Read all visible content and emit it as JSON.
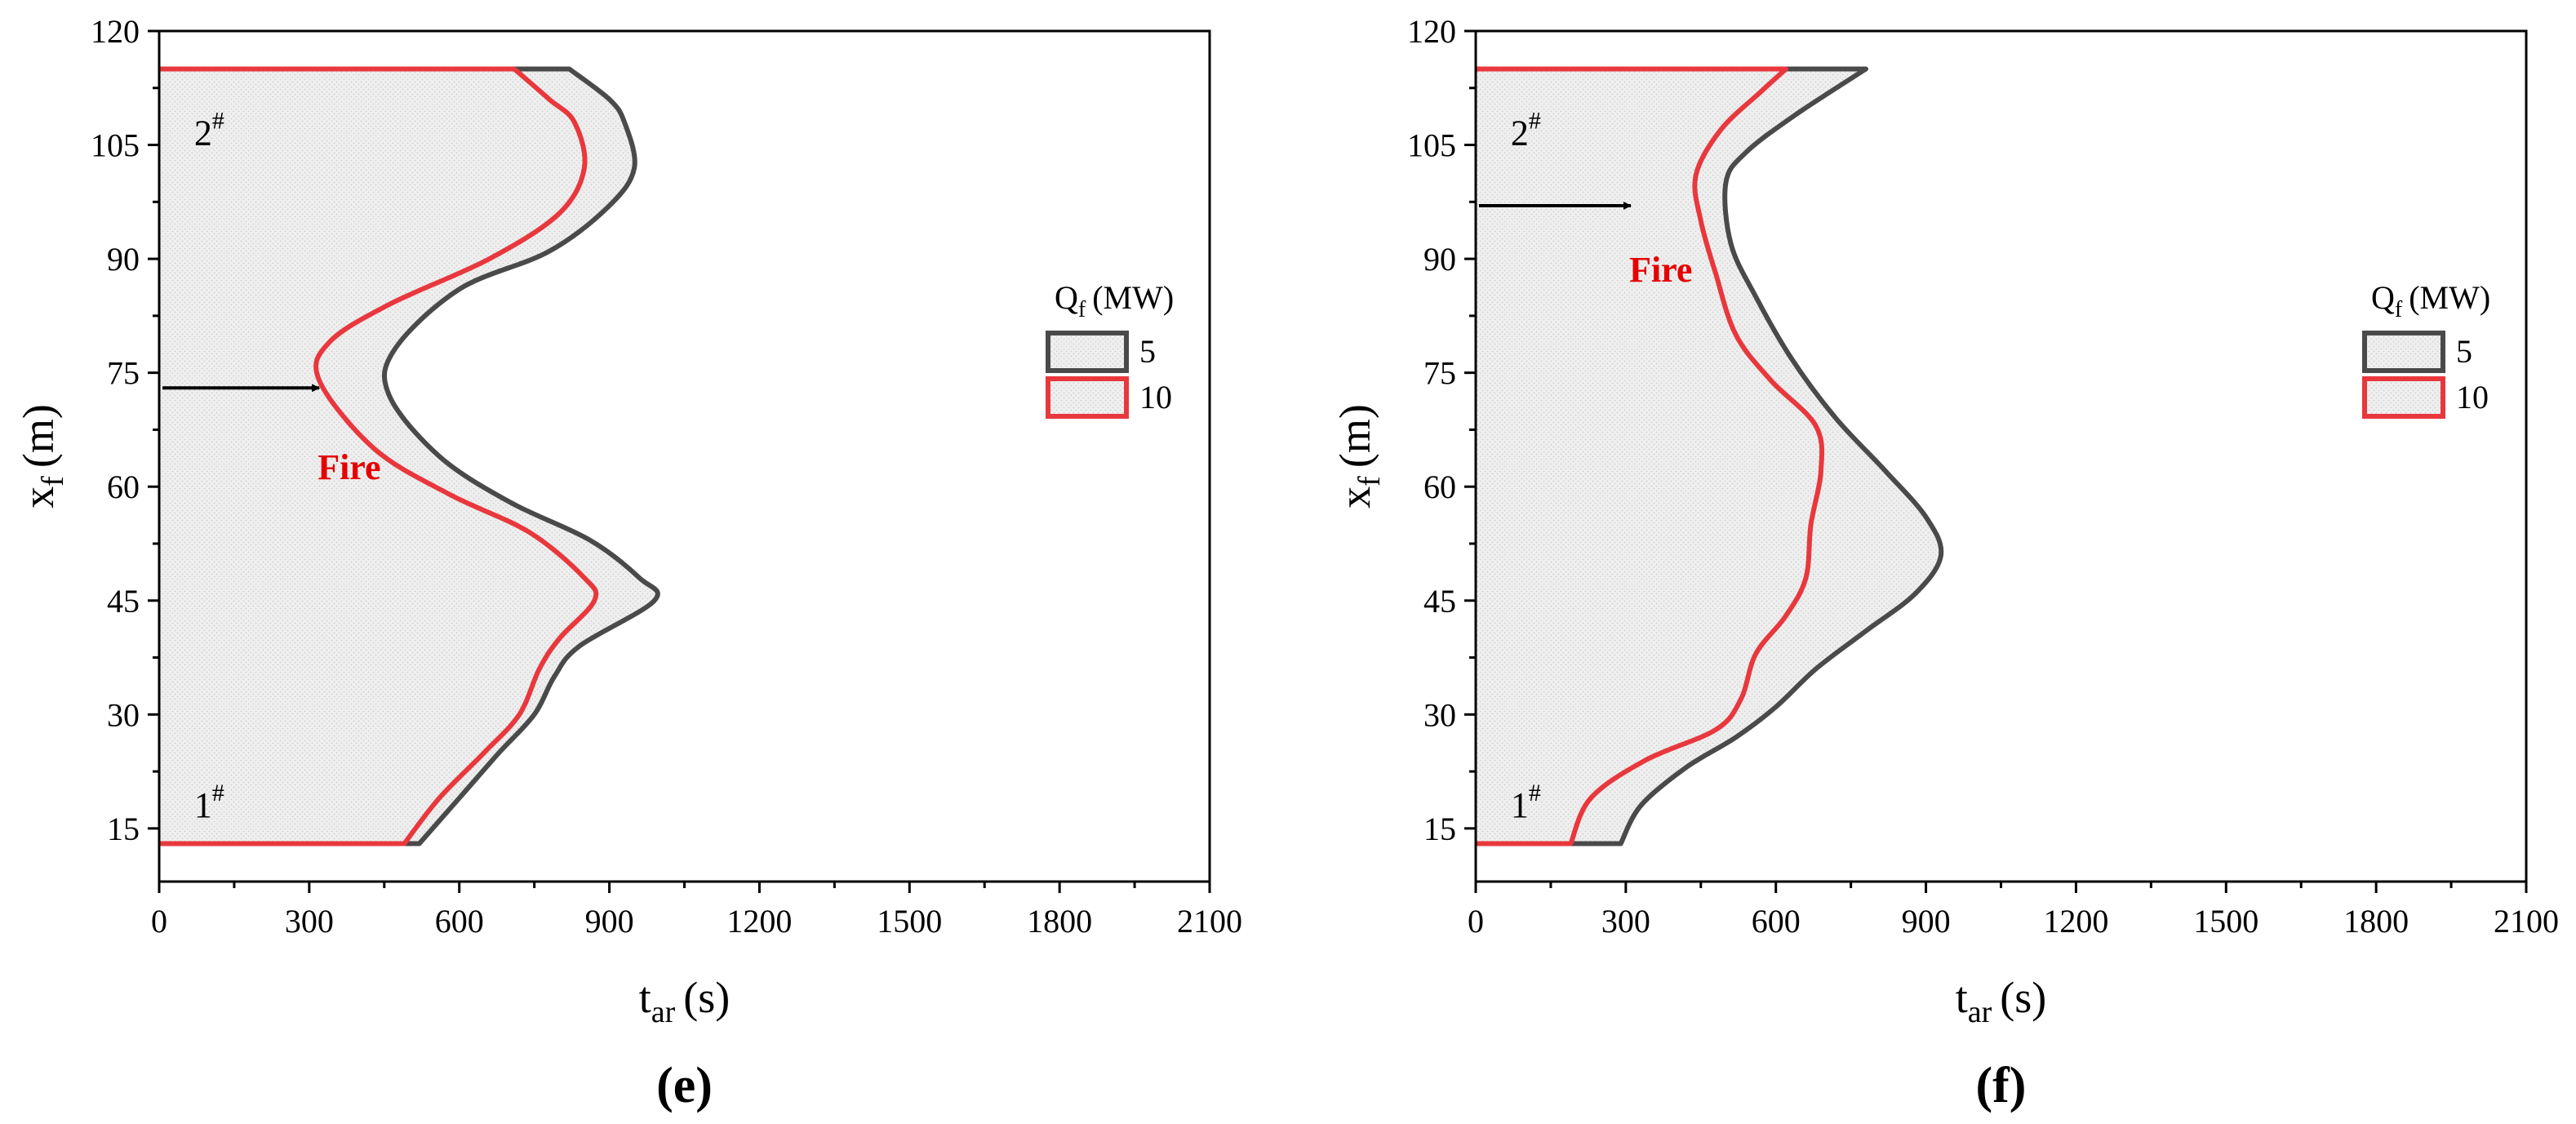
{
  "colors": {
    "series_5": "#4a4a4a",
    "series_10": "#e8383d",
    "fill": "#ededed",
    "annotation": "#e60000",
    "axis": "#000000"
  },
  "chart_data": [
    {
      "type": "line",
      "panel_label": "(e)",
      "xlabel_main": "t",
      "xlabel_sub": "ar",
      "xlabel_unit": "(s)",
      "ylabel_main": "x",
      "ylabel_sub": "f",
      "ylabel_unit": "(m)",
      "xlim": [
        0,
        2100
      ],
      "ylim": [
        8,
        120
      ],
      "x_ticks": [
        0,
        300,
        600,
        900,
        1200,
        1500,
        1800,
        2100
      ],
      "y_ticks": [
        15,
        30,
        45,
        60,
        75,
        90,
        105,
        120
      ],
      "legend_title_main": "Q",
      "legend_title_sub": "f",
      "legend_title_unit": "(MW)",
      "legend_placement": "right",
      "annotations": {
        "fire_text": "Fire",
        "fire_arrow": {
          "from": [
            0,
            73
          ],
          "to": [
            320,
            73
          ]
        },
        "fire_text_at": [
          380,
          61
        ],
        "label_top": "2",
        "label_top_sup": "#",
        "label_top_at": [
          70,
          105
        ],
        "label_bottom": "1",
        "label_bottom_sup": "#",
        "label_bottom_at": [
          70,
          16.5
        ]
      },
      "series": [
        {
          "name": "5",
          "color_key": "series_5",
          "points": [
            [
              0,
              13
            ],
            [
              520,
              13
            ],
            [
              600,
              19
            ],
            [
              680,
              25
            ],
            [
              750,
              30
            ],
            [
              790,
              35
            ],
            [
              840,
              39
            ],
            [
              990,
              45
            ],
            [
              960,
              48
            ],
            [
              860,
              53
            ],
            [
              700,
              58
            ],
            [
              560,
              64
            ],
            [
              460,
              72
            ],
            [
              470,
              78
            ],
            [
              600,
              86
            ],
            [
              780,
              91
            ],
            [
              900,
              97
            ],
            [
              950,
              102
            ],
            [
              930,
              108
            ],
            [
              900,
              111
            ],
            [
              820,
              115
            ],
            [
              0,
              115
            ]
          ]
        },
        {
          "name": "10",
          "color_key": "series_10",
          "points": [
            [
              0,
              13
            ],
            [
              490,
              13
            ],
            [
              560,
              19
            ],
            [
              650,
              25
            ],
            [
              720,
              30
            ],
            [
              760,
              36
            ],
            [
              800,
              40
            ],
            [
              870,
              45
            ],
            [
              850,
              48
            ],
            [
              740,
              54
            ],
            [
              580,
              59
            ],
            [
              430,
              65
            ],
            [
              320,
              74
            ],
            [
              340,
              79
            ],
            [
              460,
              84
            ],
            [
              660,
              90
            ],
            [
              800,
              96
            ],
            [
              850,
              102
            ],
            [
              830,
              108
            ],
            [
              780,
              111
            ],
            [
              710,
              115
            ],
            [
              0,
              115
            ]
          ]
        }
      ]
    },
    {
      "type": "line",
      "panel_label": "(f)",
      "xlabel_main": "t",
      "xlabel_sub": "ar",
      "xlabel_unit": "(s)",
      "ylabel_main": "x",
      "ylabel_sub": "f",
      "ylabel_unit": "(m)",
      "xlim": [
        0,
        2100
      ],
      "ylim": [
        8,
        120
      ],
      "x_ticks": [
        0,
        300,
        600,
        900,
        1200,
        1500,
        1800,
        2100
      ],
      "y_ticks": [
        15,
        30,
        45,
        60,
        75,
        90,
        105,
        120
      ],
      "legend_title_main": "Q",
      "legend_title_sub": "f",
      "legend_title_unit": "(MW)",
      "legend_placement": "right",
      "annotations": {
        "fire_text": "Fire",
        "fire_arrow": {
          "from": [
            0,
            97
          ],
          "to": [
            310,
            97
          ]
        },
        "fire_text_at": [
          370,
          87
        ],
        "label_top": "2",
        "label_top_sup": "#",
        "label_top_at": [
          70,
          105
        ],
        "label_bottom": "1",
        "label_bottom_sup": "#",
        "label_bottom_at": [
          70,
          16.5
        ]
      },
      "series": [
        {
          "name": "5",
          "color_key": "series_5",
          "points": [
            [
              0,
              13
            ],
            [
              290,
              13
            ],
            [
              330,
              18
            ],
            [
              420,
              23
            ],
            [
              520,
              27
            ],
            [
              600,
              31
            ],
            [
              680,
              36
            ],
            [
              780,
              41
            ],
            [
              880,
              46
            ],
            [
              930,
              51
            ],
            [
              900,
              56
            ],
            [
              820,
              62
            ],
            [
              720,
              69
            ],
            [
              630,
              77
            ],
            [
              560,
              85
            ],
            [
              510,
              92
            ],
            [
              500,
              100
            ],
            [
              540,
              104
            ],
            [
              640,
              109
            ],
            [
              780,
              115
            ],
            [
              0,
              115
            ]
          ]
        },
        {
          "name": "10",
          "color_key": "series_10",
          "points": [
            [
              0,
              13
            ],
            [
              190,
              13
            ],
            [
              230,
              19
            ],
            [
              340,
              24
            ],
            [
              480,
              28
            ],
            [
              530,
              32
            ],
            [
              560,
              38
            ],
            [
              620,
              43
            ],
            [
              660,
              48
            ],
            [
              670,
              55
            ],
            [
              690,
              62
            ],
            [
              680,
              68
            ],
            [
              590,
              74
            ],
            [
              520,
              80
            ],
            [
              480,
              88
            ],
            [
              450,
              95
            ],
            [
              440,
              101
            ],
            [
              490,
              107
            ],
            [
              570,
              112
            ],
            [
              620,
              115
            ],
            [
              0,
              115
            ]
          ]
        }
      ]
    }
  ]
}
